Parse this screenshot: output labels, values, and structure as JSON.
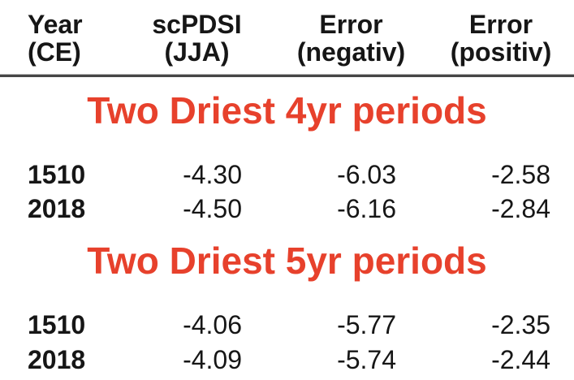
{
  "colors": {
    "accent_red": "#e7412c",
    "text": "#161616",
    "divider": "#464646",
    "background": "#ffffff"
  },
  "table": {
    "headers": [
      {
        "line1": "Year",
        "line2": "(CE)"
      },
      {
        "line1": "scPDSI",
        "line2": "(JJA)"
      },
      {
        "line1": "Error",
        "line2": "(negativ)"
      },
      {
        "line1": "Error",
        "line2": "(positiv)"
      }
    ],
    "sections": [
      {
        "title": "Two Driest 4yr periods",
        "rows": [
          {
            "year": "1510",
            "scpdsi": "-4.30",
            "error_neg": "-6.03",
            "error_pos": "-2.58"
          },
          {
            "year": "2018",
            "scpdsi": "-4.50",
            "error_neg": "-6.16",
            "error_pos": "-2.84"
          }
        ]
      },
      {
        "title": "Two Driest 5yr periods",
        "rows": [
          {
            "year": "1510",
            "scpdsi": "-4.06",
            "error_neg": "-5.77",
            "error_pos": "-2.35"
          },
          {
            "year": "2018",
            "scpdsi": "-4.09",
            "error_neg": "-5.74",
            "error_pos": "-2.44"
          }
        ]
      }
    ]
  },
  "chart_data": {
    "type": "table",
    "columns": [
      "Year (CE)",
      "scPDSI (JJA)",
      "Error (negativ)",
      "Error (positiv)"
    ],
    "sections": [
      {
        "title": "Two Driest 4yr periods",
        "rows": [
          [
            1510,
            -4.3,
            -6.03,
            -2.58
          ],
          [
            2018,
            -4.5,
            -6.16,
            -2.84
          ]
        ]
      },
      {
        "title": "Two Driest 5yr periods",
        "rows": [
          [
            1510,
            -4.06,
            -5.77,
            -2.35
          ],
          [
            2018,
            -4.09,
            -5.74,
            -2.44
          ]
        ]
      }
    ]
  }
}
